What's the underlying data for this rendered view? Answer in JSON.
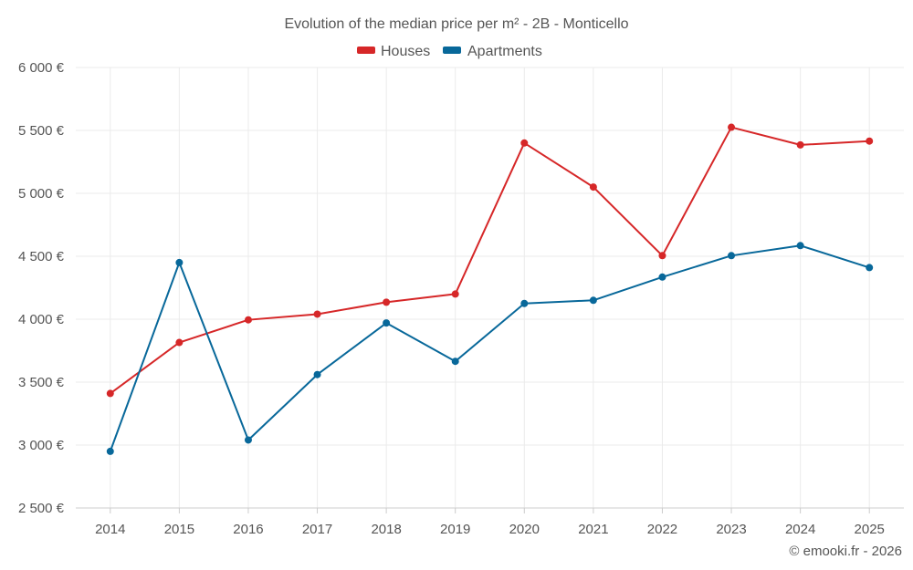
{
  "chart_data": {
    "type": "line",
    "title": "Evolution of the median price per m² - 2B - Monticello",
    "categories": [
      "2014",
      "2015",
      "2016",
      "2017",
      "2018",
      "2019",
      "2020",
      "2021",
      "2022",
      "2023",
      "2024",
      "2025"
    ],
    "series": [
      {
        "name": "Houses",
        "color": "#d62728",
        "values": [
          3410,
          3815,
          3995,
          4040,
          4135,
          4200,
          5400,
          5050,
          4505,
          5525,
          5385,
          5415
        ]
      },
      {
        "name": "Apartments",
        "color": "#08689a",
        "values": [
          2950,
          4450,
          3040,
          3560,
          3970,
          3665,
          4125,
          4150,
          4335,
          4505,
          4585,
          4410
        ]
      }
    ],
    "yticks": [
      2500,
      3000,
      3500,
      4000,
      4500,
      5000,
      5500,
      6000
    ],
    "ytick_labels": [
      "2 500 €",
      "3 000 €",
      "3 500 €",
      "4 000 €",
      "4 500 €",
      "5 000 €",
      "5 500 €",
      "6 000 €"
    ],
    "ylim": [
      2500,
      6000
    ],
    "xlabel": "",
    "ylabel": "",
    "legend_position": "top-center",
    "grid": true
  },
  "credit": "© emooki.fr - 2026"
}
